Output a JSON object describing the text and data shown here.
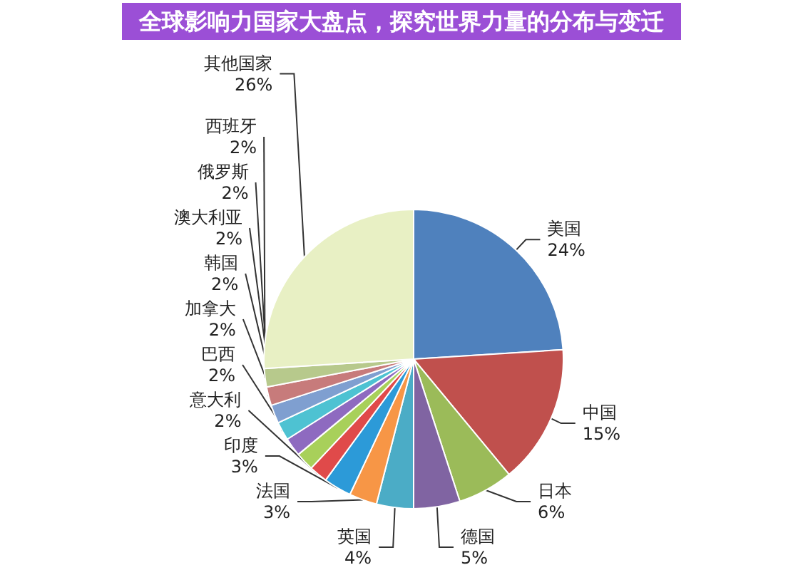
{
  "chart_data": {
    "type": "pie",
    "title": "全球影响力国家大盘点，探究世界力量的分布与变迁",
    "categories": [
      "美国",
      "中国",
      "日本",
      "德国",
      "英国",
      "法国",
      "印度",
      "意大利",
      "巴西",
      "加拿大",
      "韩国",
      "澳大利亚",
      "俄罗斯",
      "西班牙",
      "其他国家"
    ],
    "values": [
      24,
      15,
      6,
      5,
      4,
      3,
      3,
      2,
      2,
      2,
      2,
      2,
      2,
      2,
      26
    ],
    "colors": [
      "#4f81bd",
      "#c0504d",
      "#9bbb59",
      "#8064a2",
      "#4bacc6",
      "#f79646",
      "#2c9ad8",
      "#e04a4a",
      "#a8d05a",
      "#8e6ac0",
      "#4ec2d2",
      "#7f9fd0",
      "#c77b7b",
      "#b7c98c",
      "#e8f0c4"
    ],
    "value_labels": [
      "24%",
      "15%",
      "6%",
      "5%",
      "4%",
      "3%",
      "3%",
      "2%",
      "2%",
      "2%",
      "2%",
      "2%",
      "2%",
      "2%",
      "26%"
    ],
    "legend": false
  }
}
